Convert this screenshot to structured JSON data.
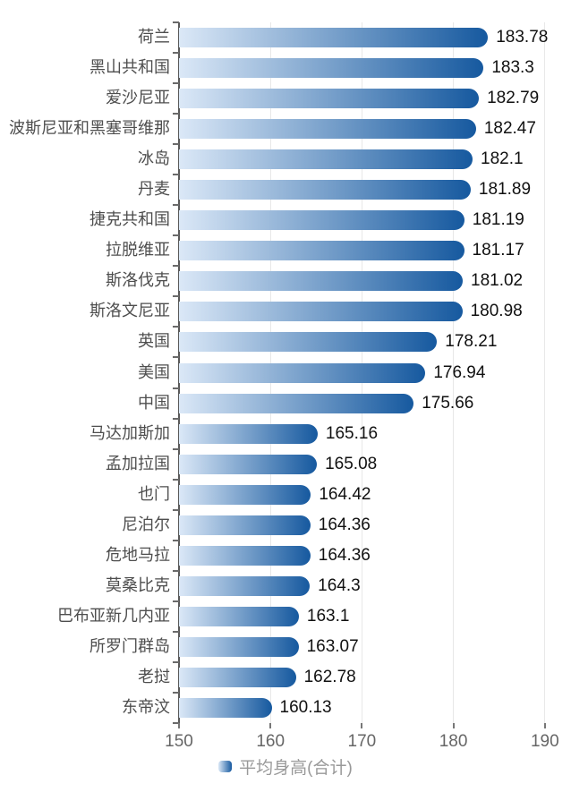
{
  "chart_data": {
    "type": "bar",
    "orientation": "horizontal",
    "title": "",
    "xlabel": "",
    "ylabel": "",
    "series_name": "平均身高(合计)",
    "legend_position": "bottom",
    "grid": true,
    "xlim": [
      150,
      190
    ],
    "x_ticks": [
      "150",
      "160",
      "170",
      "180",
      "190"
    ],
    "x_tick_values": [
      150,
      160,
      170,
      180,
      190
    ],
    "categories": [
      "荷兰",
      "黑山共和国",
      "爱沙尼亚",
      "波斯尼亚和黑塞哥维那",
      "冰岛",
      "丹麦",
      "捷克共和国",
      "拉脱维亚",
      "斯洛伐克",
      "斯洛文尼亚",
      "英国",
      "美国",
      "中国",
      "马达加斯加",
      "孟加拉国",
      "也门",
      "尼泊尔",
      "危地马拉",
      "莫桑比克",
      "巴布亚新几内亚",
      "所罗门群岛",
      "老挝",
      "东帝汶"
    ],
    "values": [
      183.78,
      183.3,
      182.79,
      182.47,
      182.1,
      181.89,
      181.19,
      181.17,
      181.02,
      180.98,
      178.21,
      176.94,
      175.66,
      165.16,
      165.08,
      164.42,
      164.36,
      164.36,
      164.3,
      163.1,
      163.07,
      162.78,
      160.13
    ],
    "value_labels": [
      "183.78",
      "183.3",
      "182.79",
      "182.47",
      "182.1",
      "181.89",
      "181.19",
      "181.17",
      "181.02",
      "180.98",
      "178.21",
      "176.94",
      "175.66",
      "165.16",
      "165.08",
      "164.42",
      "164.36",
      "164.36",
      "164.3",
      "163.1",
      "163.07",
      "162.78",
      "160.13"
    ],
    "colors": {
      "bar_gradient_start": "#dbe8f7",
      "bar_gradient_end": "#16599f",
      "gridline": "#e8e8e8",
      "axis_line": "#5a5a5a",
      "category_label": "#4e4e4e",
      "value_label": "#111111",
      "x_tick_label": "#666666",
      "legend_label": "#999999",
      "background": "#ffffff"
    }
  }
}
